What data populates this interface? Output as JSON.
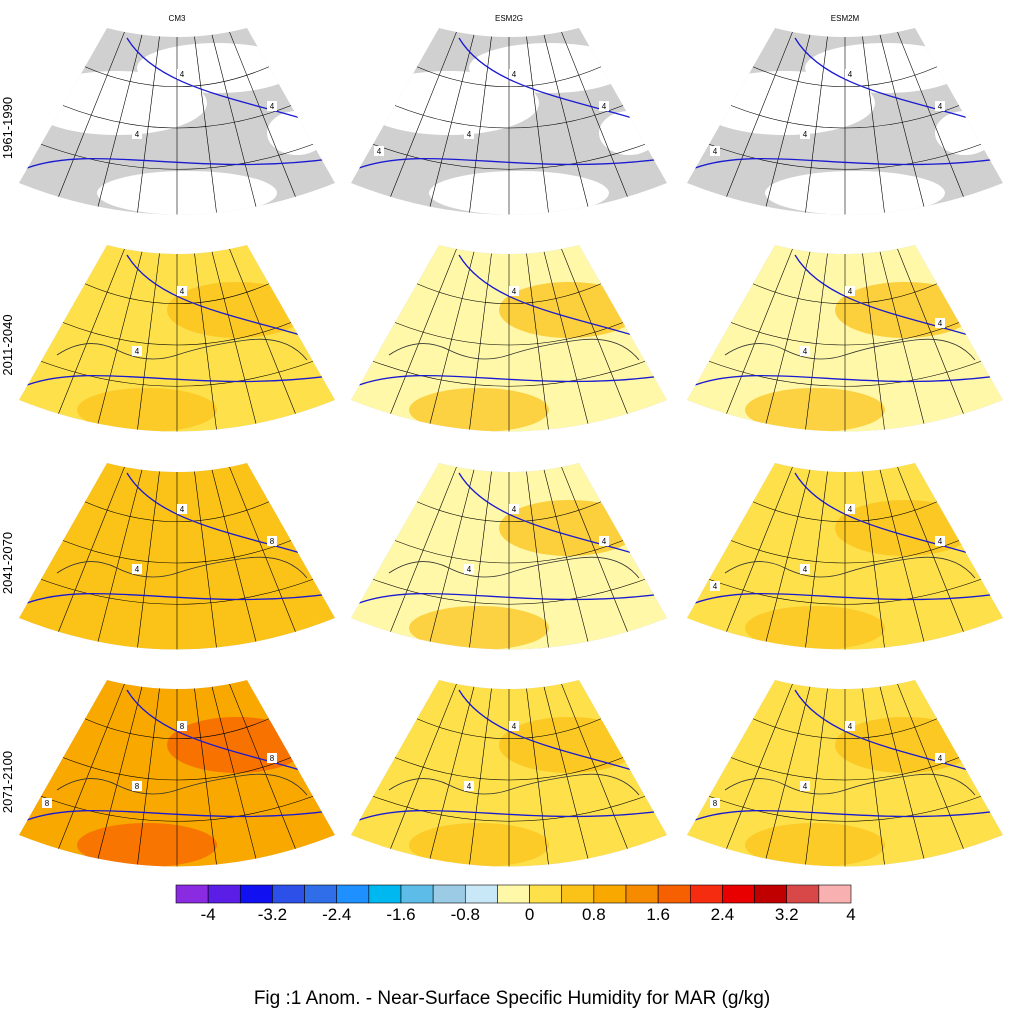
{
  "figure": {
    "caption": "Fig :1  Anom.  - Near-Surface Specific Humidity for MAR (g/kg)",
    "columns": [
      "CM3",
      "ESM2G",
      "ESM2M"
    ],
    "rows": [
      "1961-1990",
      "2011-2040",
      "2041-2070",
      "2071-2100"
    ]
  },
  "colorbar": {
    "colors": [
      "#8a2be2",
      "#5a1ee6",
      "#1010f0",
      "#2c50e8",
      "#2f6ee8",
      "#1e90ff",
      "#00b8f0",
      "#5ebde8",
      "#9ccbe6",
      "#c8e8f8",
      "#fff8a8",
      "#fde04a",
      "#fbc218",
      "#f9a800",
      "#f78b00",
      "#f76000",
      "#f52c10",
      "#e80000",
      "#c00000",
      "#d84848",
      "#f8b0b0"
    ],
    "tick_labels": [
      "-4",
      "-3.2",
      "-2.4",
      "-1.6",
      "-0.8",
      "0",
      "0.8",
      "1.6",
      "2.4",
      "3.2",
      "4"
    ]
  },
  "panels": [
    {
      "row": 0,
      "col": 0,
      "fill": "#ffffff",
      "contour_labels": [
        "4",
        "4",
        "4"
      ]
    },
    {
      "row": 0,
      "col": 1,
      "fill": "#ffffff",
      "contour_labels": [
        "4",
        "4",
        "4",
        "4"
      ]
    },
    {
      "row": 0,
      "col": 2,
      "fill": "#ffffff",
      "contour_labels": [
        "4",
        "4",
        "4",
        "4"
      ]
    },
    {
      "row": 1,
      "col": 0,
      "fill": "#fde04a",
      "contour_labels": [
        "4",
        "4"
      ]
    },
    {
      "row": 1,
      "col": 1,
      "fill": "#fff8a8",
      "contour_labels": [
        "4"
      ]
    },
    {
      "row": 1,
      "col": 2,
      "fill": "#fff8a8",
      "contour_labels": [
        "4",
        "4",
        "4"
      ]
    },
    {
      "row": 2,
      "col": 0,
      "fill": "#fbc218",
      "contour_labels": [
        "4",
        "4",
        "8"
      ]
    },
    {
      "row": 2,
      "col": 1,
      "fill": "#fff8a8",
      "contour_labels": [
        "4",
        "4",
        "4"
      ]
    },
    {
      "row": 2,
      "col": 2,
      "fill": "#fde04a",
      "contour_labels": [
        "4",
        "4",
        "4",
        "4"
      ]
    },
    {
      "row": 3,
      "col": 0,
      "fill": "#f9a800",
      "contour_labels": [
        "8",
        "8",
        "8",
        "8"
      ]
    },
    {
      "row": 3,
      "col": 1,
      "fill": "#fde04a",
      "contour_labels": [
        "4",
        "4"
      ]
    },
    {
      "row": 3,
      "col": 2,
      "fill": "#fde04a",
      "contour_labels": [
        "4",
        "4",
        "4",
        "8"
      ]
    }
  ]
}
